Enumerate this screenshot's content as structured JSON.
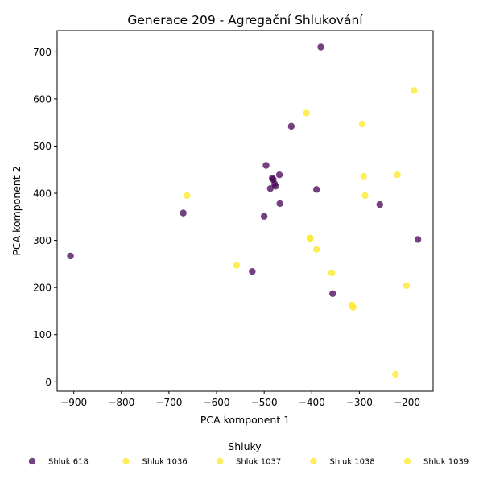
{
  "chart_data": {
    "type": "scatter",
    "title": "Generace 209 - Agregační Shlukování",
    "xlabel": "PCA komponent 1",
    "ylabel": "PCA komponent 2",
    "xlim": [
      -935,
      -145
    ],
    "ylim": [
      -20,
      745
    ],
    "xticks": [
      -900,
      -800,
      -700,
      -600,
      -500,
      -400,
      -300,
      -200
    ],
    "yticks": [
      0,
      100,
      200,
      300,
      400,
      500,
      600,
      700
    ],
    "grid": false,
    "legend": {
      "title": "Shluky",
      "placement": "bottom-center"
    },
    "series": [
      {
        "name": "Shluk 618",
        "color": "#440154",
        "points": [
          [
            -381,
            710
          ],
          [
            -443,
            542
          ],
          [
            -496,
            459
          ],
          [
            -468,
            439
          ],
          [
            -483,
            432
          ],
          [
            -481,
            429
          ],
          [
            -478,
            420
          ],
          [
            -476,
            415
          ],
          [
            -487,
            410
          ],
          [
            -390,
            408
          ],
          [
            -467,
            378
          ],
          [
            -257,
            376
          ],
          [
            -670,
            358
          ],
          [
            -500,
            351
          ],
          [
            -177,
            302
          ],
          [
            -907,
            267
          ],
          [
            -525,
            234
          ],
          [
            -356,
            187
          ]
        ]
      },
      {
        "name": "Shluk 1036",
        "color": "#fde725",
        "points": [
          [
            -185,
            618
          ],
          [
            -411,
            570
          ],
          [
            -294,
            547
          ],
          [
            -662,
            395
          ],
          [
            -558,
            247
          ]
        ]
      },
      {
        "name": "Shluk 1037",
        "color": "#fde725",
        "points": [
          [
            -291,
            436
          ],
          [
            -220,
            439
          ],
          [
            -288,
            395
          ],
          [
            -404,
            305
          ],
          [
            -403,
            304
          ]
        ]
      },
      {
        "name": "Shluk 1038",
        "color": "#fde725",
        "points": [
          [
            -390,
            281
          ],
          [
            -358,
            231
          ],
          [
            -201,
            204
          ],
          [
            -316,
            163
          ],
          [
            -313,
            158
          ]
        ]
      },
      {
        "name": "Shluk 1039",
        "color": "#fde725",
        "points": [
          [
            -224,
            16
          ]
        ]
      }
    ]
  }
}
